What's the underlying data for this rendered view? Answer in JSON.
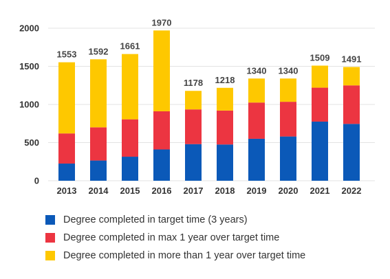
{
  "chart_data": {
    "type": "bar",
    "stacked": true,
    "categories": [
      "2013",
      "2014",
      "2015",
      "2016",
      "2017",
      "2018",
      "2019",
      "2020",
      "2021",
      "2022"
    ],
    "series": [
      {
        "name": "Degree completed in target time (3 years)",
        "color": "#0b59b8",
        "values": [
          225,
          265,
          315,
          410,
          480,
          475,
          550,
          580,
          775,
          745
        ]
      },
      {
        "name": "Degree completed in max 1 year over target time",
        "color": "#ec3541",
        "values": [
          395,
          435,
          490,
          500,
          455,
          445,
          475,
          455,
          445,
          505
        ]
      },
      {
        "name": "Degree completed in more than 1 year over target time",
        "color": "#fec800",
        "values": [
          933,
          892,
          856,
          1060,
          243,
          298,
          315,
          305,
          289,
          241
        ]
      }
    ],
    "totals": [
      "1553",
      "1592",
      "1661",
      "1970",
      "1178",
      "1218",
      "1340",
      "1340",
      "1509",
      "1491"
    ],
    "yticks": [
      "0",
      "500",
      "1000",
      "1500",
      "2000"
    ],
    "ylim": [
      0,
      2000
    ],
    "grid": true,
    "legend_position": "bottom"
  }
}
